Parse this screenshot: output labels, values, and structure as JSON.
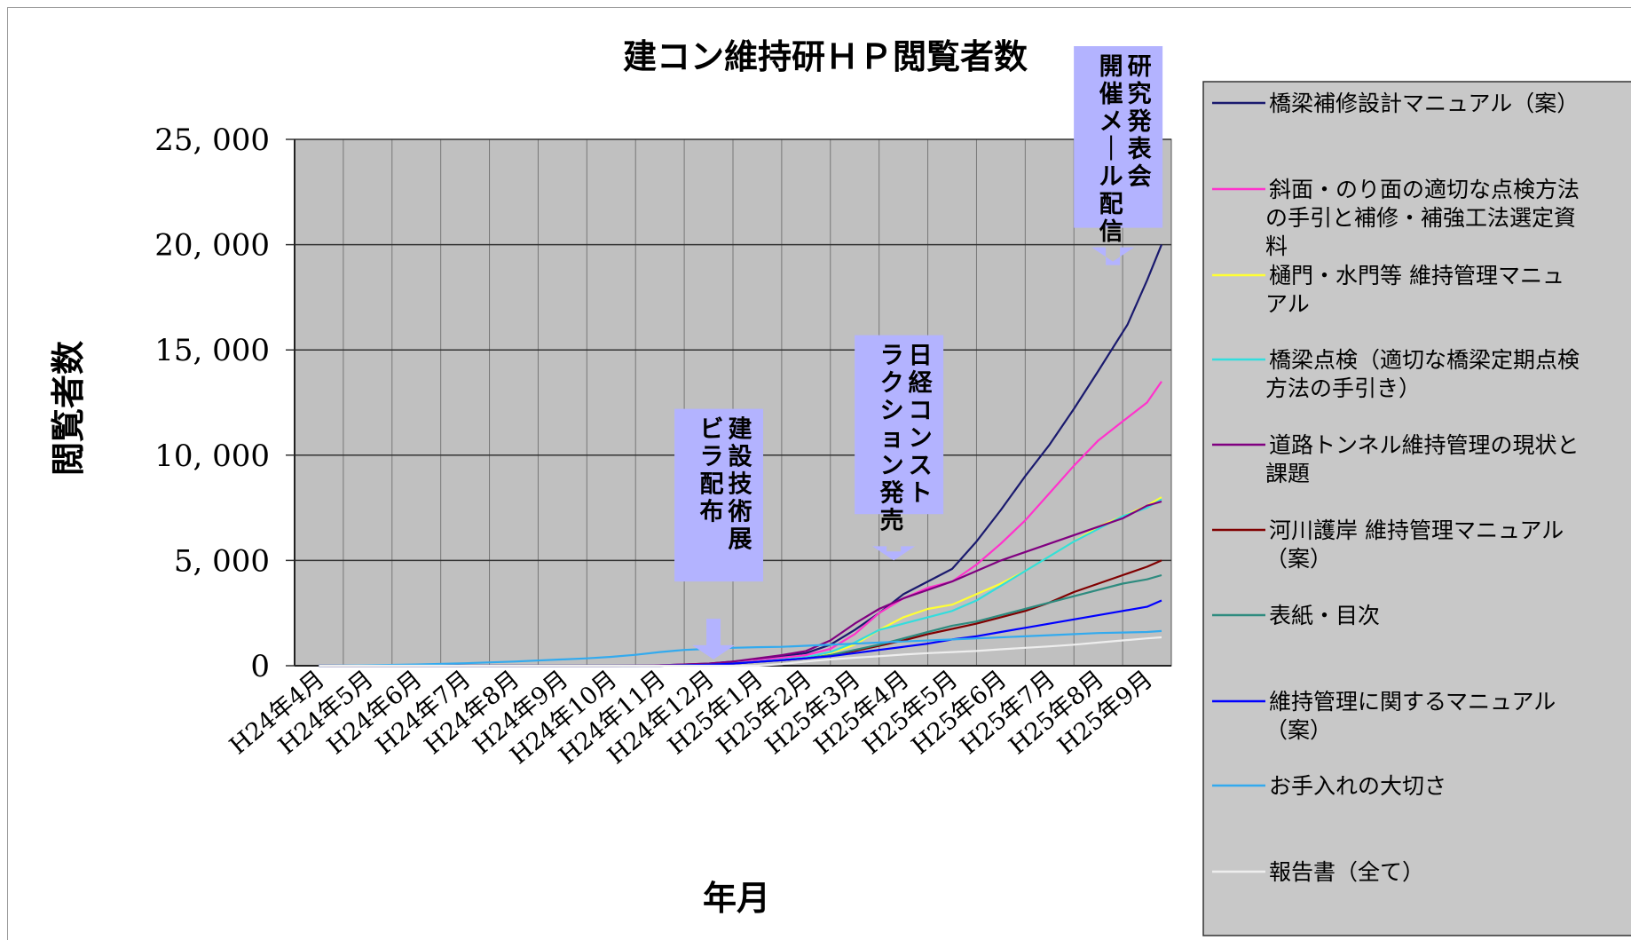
{
  "chart_data": {
    "type": "line",
    "title": "建コン維持研ＨＰ閲覧者数",
    "xlabel": "年月",
    "ylabel": "閲覧者数",
    "ylim": [
      0,
      25000
    ],
    "yticks": [
      0,
      5000,
      10000,
      15000,
      20000,
      25000
    ],
    "ytick_labels": [
      "0",
      "5, 000",
      "10, 000",
      "15, 000",
      "20, 000",
      "25, 000"
    ],
    "categories": [
      "H24年4月",
      "H24年5月",
      "H24年6月",
      "H24年7月",
      "H24年8月",
      "H24年9月",
      "H24年10月",
      "H24年11月",
      "H24年12月",
      "H25年1月",
      "H25年2月",
      "H25年3月",
      "H25年4月",
      "H25年5月",
      "H25年6月",
      "H25年7月",
      "H25年8月",
      "H25年9月"
    ],
    "grid": true,
    "plot_background": "#c0c0c0",
    "legend_position": "right",
    "series": [
      {
        "name": "橋梁補修設計マニュアル（案）",
        "color": "#1a1a6e",
        "x": [
          0,
          4,
          5,
          6,
          6.5,
          7,
          7.5,
          8,
          8.5,
          9,
          9.5,
          10,
          10.5,
          11,
          11.5,
          12,
          12.5,
          13,
          13.5,
          14,
          14.5,
          15,
          15.5,
          16,
          16.3,
          16.6,
          17,
          17.3
        ],
        "y": [
          0,
          0,
          0,
          0,
          0,
          20,
          60,
          100,
          200,
          300,
          450,
          600,
          1000,
          1700,
          2500,
          3400,
          4000,
          4600,
          5900,
          7400,
          9000,
          10500,
          12200,
          14000,
          15100,
          16200,
          18300,
          20000
        ]
      },
      {
        "name": "斜面・のり面の適切な点検方法の手引と補修・補強工法選定資料",
        "color": "#ff33cc",
        "x": [
          0,
          6,
          7,
          8,
          8.5,
          9,
          9.5,
          10,
          10.5,
          11,
          11.5,
          12,
          12.5,
          13,
          13.5,
          14,
          14.5,
          15,
          15.5,
          16,
          16.5,
          17,
          17.3
        ],
        "y": [
          0,
          0,
          20,
          80,
          150,
          250,
          380,
          500,
          800,
          1500,
          2500,
          3200,
          3700,
          4000,
          4800,
          5800,
          6900,
          8200,
          9500,
          10700,
          11600,
          12500,
          13500
        ]
      },
      {
        "name": "樋門・水門等 維持管理マニュアル",
        "color": "#ffff33",
        "x": [
          0,
          6,
          7,
          8,
          8.5,
          9,
          9.5,
          10,
          10.5,
          11,
          11.5,
          12,
          12.5,
          13,
          13.5,
          14,
          14.5,
          15,
          15.5,
          16,
          16.5,
          17,
          17.3
        ],
        "y": [
          0,
          0,
          10,
          50,
          100,
          180,
          270,
          380,
          600,
          1000,
          1700,
          2300,
          2700,
          2900,
          3400,
          3900,
          4500,
          5200,
          5900,
          6600,
          7100,
          7600,
          8000
        ]
      },
      {
        "name": "橋梁点検（適切な橋梁定期点検方法の手引き）",
        "color": "#33dddd",
        "x": [
          0,
          6,
          7,
          8,
          8.5,
          9,
          9.5,
          10,
          10.5,
          11,
          11.5,
          12,
          12.5,
          13,
          13.5,
          14,
          14.5,
          15,
          15.5,
          16,
          16.5,
          17,
          17.3
        ],
        "y": [
          0,
          0,
          10,
          50,
          120,
          200,
          290,
          400,
          650,
          1100,
          1700,
          2000,
          2300,
          2600,
          3100,
          3800,
          4500,
          5200,
          5900,
          6500,
          7100,
          7500,
          7900
        ]
      },
      {
        "name": "道路トンネル維持管理の現状と課題",
        "color": "#800080",
        "x": [
          0,
          6,
          7,
          8,
          8.5,
          9,
          9.5,
          10,
          10.5,
          11,
          11.5,
          12,
          12.5,
          13,
          13.5,
          14,
          14.5,
          15,
          15.5,
          16,
          16.5,
          17,
          17.3
        ],
        "y": [
          0,
          0,
          20,
          100,
          200,
          350,
          500,
          700,
          1200,
          2000,
          2700,
          3200,
          3600,
          4000,
          4500,
          5000,
          5400,
          5800,
          6200,
          6600,
          7000,
          7600,
          7800
        ]
      },
      {
        "name": "河川護岸 維持管理マニュアル（案）",
        "color": "#800000",
        "x": [
          0,
          7,
          8,
          8.5,
          9,
          9.5,
          10,
          10.5,
          11,
          11.5,
          12,
          12.5,
          13,
          13.5,
          14,
          14.5,
          15,
          15.5,
          16,
          16.5,
          17,
          17.3
        ],
        "y": [
          0,
          0,
          50,
          100,
          180,
          260,
          350,
          500,
          700,
          950,
          1200,
          1500,
          1750,
          2000,
          2300,
          2600,
          3000,
          3500,
          3900,
          4300,
          4700,
          5000
        ]
      },
      {
        "name": "表紙・目次",
        "color": "#2e8b7f",
        "x": [
          0,
          7,
          8,
          8.5,
          9,
          9.5,
          10,
          10.5,
          11,
          11.5,
          12,
          12.5,
          13,
          13.5,
          14,
          14.5,
          15,
          15.5,
          16,
          16.5,
          17,
          17.3
        ],
        "y": [
          0,
          0,
          50,
          100,
          180,
          260,
          350,
          500,
          750,
          1000,
          1300,
          1600,
          1900,
          2100,
          2400,
          2700,
          3000,
          3300,
          3600,
          3900,
          4100,
          4300
        ]
      },
      {
        "name": "維持管理に関するマニュアル（案）",
        "color": "#0000ff",
        "x": [
          0,
          7,
          8,
          8.5,
          9,
          9.5,
          10,
          10.5,
          11,
          11.5,
          12,
          12.5,
          13,
          13.5,
          14,
          14.5,
          15,
          15.5,
          16,
          16.5,
          17,
          17.3
        ],
        "y": [
          0,
          0,
          50,
          100,
          180,
          260,
          350,
          450,
          600,
          750,
          900,
          1050,
          1250,
          1400,
          1600,
          1800,
          2000,
          2200,
          2400,
          2600,
          2800,
          3100
        ]
      },
      {
        "name": "お手入れの大切さ",
        "color": "#33aaee",
        "x": [
          0,
          1,
          2,
          3,
          4,
          5,
          5.5,
          6,
          6.5,
          7,
          7.5,
          8,
          8.5,
          9,
          9.5,
          10,
          11,
          12,
          13,
          14,
          15,
          16,
          17,
          17.3
        ],
        "y": [
          0,
          20,
          60,
          120,
          200,
          300,
          350,
          420,
          520,
          650,
          750,
          800,
          850,
          880,
          900,
          950,
          1050,
          1150,
          1250,
          1350,
          1450,
          1550,
          1600,
          1650
        ]
      },
      {
        "name": "報告書（全て）",
        "color": "#eeeeee",
        "x": [
          0,
          9,
          9.5,
          10,
          10.5,
          11,
          11.5,
          12,
          12.5,
          13,
          13.5,
          14,
          14.5,
          15,
          15.5,
          16,
          16.5,
          17,
          17.3
        ],
        "y": [
          0,
          0,
          80,
          200,
          300,
          380,
          450,
          530,
          600,
          650,
          700,
          780,
          850,
          920,
          1000,
          1100,
          1200,
          1300,
          1350
        ]
      }
    ],
    "annotations": [
      {
        "id": "expo",
        "columns": [
          "建設技術展",
          "ビラ配布"
        ],
        "arrow_x": 8.1,
        "arrow_y": 300,
        "column_bottom_y": 4000,
        "column_top_y": 12200
      },
      {
        "id": "nikkei",
        "columns": [
          "日経コンスト",
          "ラクション発売"
        ],
        "arrow_x": 11.8,
        "arrow_y": 5000,
        "column_bottom_y": 7200,
        "column_top_y": 15700
      },
      {
        "id": "research",
        "columns": [
          "研究発表会",
          "開催メール配信"
        ],
        "arrow_x": 16.3,
        "arrow_y": 19200,
        "column_bottom_y": 20800,
        "column_top_y": 29500
      }
    ]
  }
}
